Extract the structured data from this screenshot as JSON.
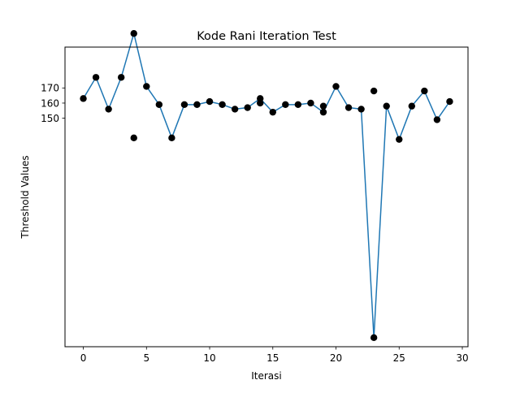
{
  "chart_data": {
    "type": "line",
    "title": "Kode Rani Iteration Test",
    "xlabel": "Iterasi",
    "ylabel": "Threshold Values",
    "xlim": [
      -1.45,
      30.45
    ],
    "ylim": [
      -1,
      197
    ],
    "xticks": [
      0,
      5,
      10,
      15,
      20,
      25,
      30
    ],
    "yticks": [
      150,
      160,
      170
    ],
    "grid": false,
    "line_series": {
      "x": [
        0,
        1,
        2,
        3,
        4,
        5,
        6,
        7,
        8,
        9,
        10,
        11,
        12,
        13,
        14,
        15,
        16,
        17,
        18,
        19,
        20,
        21,
        22,
        23,
        24,
        25,
        26,
        27,
        28,
        29
      ],
      "values": [
        163,
        177,
        156,
        177,
        206,
        171,
        159,
        137,
        159,
        159,
        161,
        159,
        156,
        157,
        163,
        154,
        159,
        159,
        160,
        154,
        171,
        157,
        156,
        5,
        158,
        136,
        158,
        168,
        149,
        161
      ]
    },
    "scatter_points": [
      [
        0,
        163
      ],
      [
        1,
        177
      ],
      [
        2,
        156
      ],
      [
        3,
        177
      ],
      [
        4,
        206
      ],
      [
        4,
        137
      ],
      [
        5,
        171
      ],
      [
        6,
        159
      ],
      [
        7,
        137
      ],
      [
        8,
        159
      ],
      [
        9,
        159
      ],
      [
        10,
        161
      ],
      [
        11,
        159
      ],
      [
        12,
        156
      ],
      [
        13,
        157
      ],
      [
        14,
        163
      ],
      [
        14,
        160
      ],
      [
        15,
        154
      ],
      [
        16,
        159
      ],
      [
        17,
        159
      ],
      [
        18,
        160
      ],
      [
        19,
        154
      ],
      [
        19,
        158
      ],
      [
        20,
        171
      ],
      [
        21,
        157
      ],
      [
        22,
        156
      ],
      [
        23,
        5
      ],
      [
        23,
        168
      ],
      [
        24,
        158
      ],
      [
        25,
        136
      ],
      [
        26,
        158
      ],
      [
        27,
        168
      ],
      [
        28,
        149
      ],
      [
        29,
        161
      ]
    ],
    "colors": {
      "line": "#1f77b4",
      "marker": "#000000",
      "axis": "#000000"
    }
  }
}
